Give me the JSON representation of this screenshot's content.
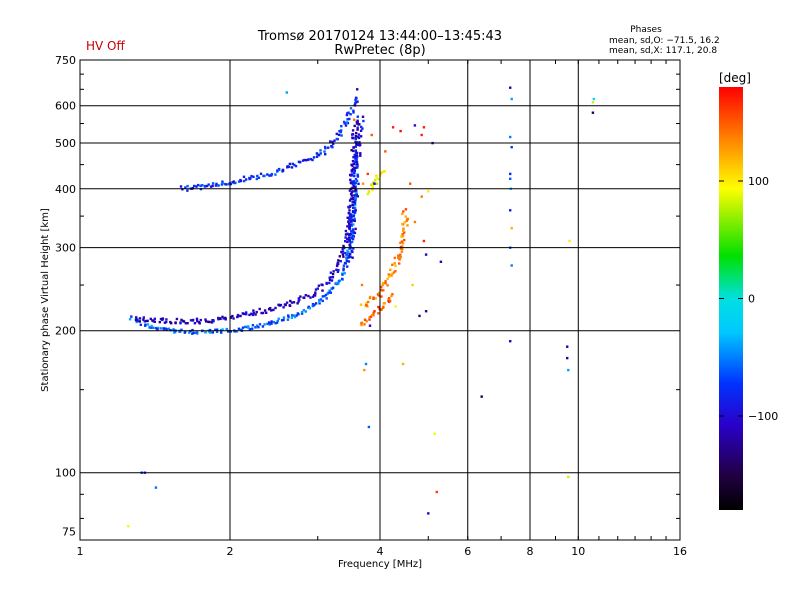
{
  "chart_data": {
    "type": "scatter",
    "title": "Tromsø 20170124 13:44:00–13:45:43",
    "subtitle": "RwPretec (8p)",
    "status": "HV Off",
    "status_color": "#cc0000",
    "xlabel": "Frequency [MHz]",
    "ylabel": "Stationary phase Virtual Height [km]",
    "x_scale": "log",
    "y_scale": "log",
    "xlim": [
      1,
      16
    ],
    "ylim": [
      72,
      750
    ],
    "x_ticks": [
      1,
      2,
      4,
      6,
      8,
      10,
      16
    ],
    "x_tick_labels": [
      "1",
      "2",
      "4",
      "6",
      "8",
      "10",
      "16"
    ],
    "y_ticks": [
      75,
      100,
      200,
      300,
      400,
      500,
      600,
      750
    ],
    "y_tick_labels": [
      "75",
      "100",
      "200",
      "300",
      "400",
      "500",
      "600",
      "750"
    ],
    "x_gridlines": [
      2,
      4,
      6,
      8,
      10
    ],
    "y_gridlines": [
      100,
      200,
      300,
      400,
      500,
      600
    ],
    "grid": true,
    "phases": {
      "heading": "Phases",
      "line_o": "mean, sd,O: −71.5, 16.2",
      "line_x": "mean, sd,X: 117.1, 20.8"
    },
    "colorbar": {
      "label": "[deg]",
      "range": [
        -180,
        180
      ],
      "ticks": [
        100,
        0,
        -100
      ],
      "tick_labels": [
        "100",
        "0",
        "−100"
      ]
    },
    "traces": [
      {
        "name": "o-trace lower",
        "points": [
          [
            1.27,
            213
          ],
          [
            1.35,
            206
          ],
          [
            1.45,
            201
          ],
          [
            1.6,
            199
          ],
          [
            1.8,
            199
          ],
          [
            2.0,
            200
          ],
          [
            2.2,
            203
          ],
          [
            2.4,
            207
          ],
          [
            2.6,
            212
          ],
          [
            2.8,
            220
          ],
          [
            3.0,
            229
          ],
          [
            3.2,
            243
          ],
          [
            3.35,
            260
          ],
          [
            3.45,
            285
          ],
          [
            3.52,
            330
          ],
          [
            3.56,
            400
          ],
          [
            3.6,
            480
          ]
        ],
        "phase": -60,
        "spread": 4
      },
      {
        "name": "o-trace upper",
        "points": [
          [
            1.3,
            212
          ],
          [
            1.45,
            210
          ],
          [
            1.6,
            209
          ],
          [
            1.85,
            210
          ],
          [
            2.1,
            215
          ],
          [
            2.4,
            222
          ],
          [
            2.7,
            230
          ],
          [
            2.95,
            240
          ],
          [
            3.15,
            255
          ],
          [
            3.3,
            275
          ],
          [
            3.4,
            300
          ],
          [
            3.48,
            350
          ],
          [
            3.52,
            420
          ],
          [
            3.55,
            500
          ],
          [
            3.58,
            560
          ]
        ],
        "phase": -110,
        "spread": 5
      },
      {
        "name": "F2 dense column",
        "points": [
          [
            3.48,
            280
          ],
          [
            3.52,
            330
          ],
          [
            3.55,
            380
          ],
          [
            3.58,
            430
          ],
          [
            3.6,
            480
          ],
          [
            3.63,
            530
          ],
          [
            3.66,
            570
          ]
        ],
        "phase": -95,
        "spread": 7
      },
      {
        "name": "F1 trace",
        "points": [
          [
            1.6,
            400
          ],
          [
            1.7,
            402
          ],
          [
            1.9,
            408
          ],
          [
            2.1,
            418
          ],
          [
            2.4,
            430
          ],
          [
            2.7,
            450
          ],
          [
            3.0,
            470
          ],
          [
            3.2,
            495
          ],
          [
            3.3,
            520
          ],
          [
            3.45,
            560
          ],
          [
            3.55,
            600
          ],
          [
            3.62,
            630
          ]
        ],
        "phase": -80,
        "spread": 5
      },
      {
        "name": "x-trace",
        "points": [
          [
            3.7,
            225
          ],
          [
            3.85,
            232
          ],
          [
            4.0,
            240
          ],
          [
            4.15,
            255
          ],
          [
            4.3,
            275
          ],
          [
            4.4,
            300
          ],
          [
            4.48,
            330
          ],
          [
            4.5,
            360
          ]
        ],
        "phase": 135,
        "spread": 6
      },
      {
        "name": "x-trace lower",
        "points": [
          [
            3.65,
            205
          ],
          [
            3.85,
            215
          ],
          [
            4.05,
            225
          ],
          [
            4.25,
            240
          ]
        ],
        "phase": 150,
        "spread": 4
      },
      {
        "name": "x-trace upper",
        "points": [
          [
            3.8,
            390
          ],
          [
            3.9,
            410
          ],
          [
            4.0,
            430
          ],
          [
            4.1,
            440
          ]
        ],
        "phase": 90,
        "spread": 4
      }
    ],
    "scatter": [
      [
        1.25,
        77,
        90
      ],
      [
        1.33,
        100,
        -70
      ],
      [
        1.35,
        100,
        -85
      ],
      [
        1.42,
        93,
        -55
      ],
      [
        2.6,
        640,
        -40
      ],
      [
        3.55,
        560,
        140
      ],
      [
        3.6,
        650,
        -110
      ],
      [
        3.68,
        250,
        140
      ],
      [
        3.72,
        165,
        130
      ],
      [
        3.75,
        170,
        -50
      ],
      [
        3.8,
        125,
        -60
      ],
      [
        3.82,
        205,
        -110
      ],
      [
        3.7,
        410,
        130
      ],
      [
        3.78,
        430,
        160
      ],
      [
        3.85,
        520,
        150
      ],
      [
        3.9,
        410,
        -110
      ],
      [
        4.1,
        480,
        150
      ],
      [
        4.25,
        540,
        170
      ],
      [
        4.3,
        225,
        90
      ],
      [
        4.4,
        530,
        175
      ],
      [
        4.45,
        170,
        120
      ],
      [
        4.55,
        345,
        140
      ],
      [
        4.6,
        410,
        150
      ],
      [
        4.65,
        250,
        110
      ],
      [
        4.7,
        340,
        140
      ],
      [
        4.7,
        545,
        -100
      ],
      [
        4.8,
        215,
        -130
      ],
      [
        4.85,
        385,
        140
      ],
      [
        4.9,
        310,
        170
      ],
      [
        4.95,
        220,
        -120
      ],
      [
        4.95,
        290,
        -110
      ],
      [
        5.0,
        395,
        100
      ],
      [
        4.9,
        540,
        170
      ],
      [
        4.85,
        520,
        170
      ],
      [
        5.0,
        82,
        -110
      ],
      [
        5.1,
        500,
        -100
      ],
      [
        5.15,
        121,
        90
      ],
      [
        5.2,
        91,
        160
      ],
      [
        5.3,
        280,
        -110
      ],
      [
        6.4,
        145,
        -150
      ],
      [
        7.3,
        655,
        -120
      ],
      [
        7.35,
        620,
        -40
      ],
      [
        7.3,
        515,
        -50
      ],
      [
        7.35,
        490,
        -70
      ],
      [
        7.3,
        430,
        -80
      ],
      [
        7.3,
        420,
        -60
      ],
      [
        7.32,
        400,
        -30
      ],
      [
        7.3,
        360,
        -90
      ],
      [
        7.35,
        330,
        120
      ],
      [
        7.3,
        300,
        -60
      ],
      [
        7.35,
        275,
        -50
      ],
      [
        7.3,
        190,
        -110
      ],
      [
        9.5,
        185,
        -120
      ],
      [
        9.5,
        175,
        -120
      ],
      [
        9.55,
        165,
        -40
      ],
      [
        9.55,
        98,
        80
      ],
      [
        9.6,
        310,
        100
      ],
      [
        10.7,
        610,
        80
      ],
      [
        10.75,
        620,
        -10
      ],
      [
        10.7,
        580,
        -150
      ]
    ]
  }
}
